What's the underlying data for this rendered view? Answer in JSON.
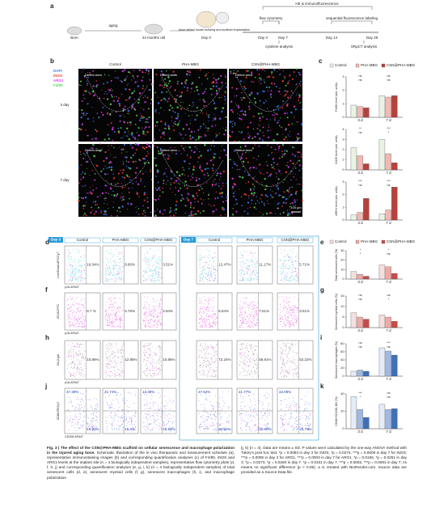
{
  "panel_a": {
    "letter": "a",
    "aging": "aging",
    "born": "Born",
    "age": "24 months old",
    "model": "bone defect model building and scaffold implantation",
    "he": "HE & immunofluorescence",
    "flow": "flow cytometry",
    "seq": "sequential fluorescence labeling",
    "cyto": "cytokine analysis",
    "ct": "SRµCT analysis",
    "days": [
      "Day 0",
      "Day 3",
      "Day 7",
      "Day 14",
      "Day 28"
    ]
  },
  "panel_b": {
    "letter": "b",
    "columns": [
      "Control",
      "PHA-MBG",
      "CSN@PHA-MBG"
    ],
    "rows": [
      "3 day",
      "7 day"
    ],
    "channels": [
      "DAPI",
      "iNOS",
      "ARG1",
      "F4/80"
    ],
    "area": "Defect area",
    "scale": "100 µm"
  },
  "panel_c": {
    "letter": "c",
    "groups": [
      {
        "name": "Control",
        "color": "#e9f3e4"
      },
      {
        "name": "PHA-MBG",
        "color": "#f3b8b4"
      },
      {
        "name": "CSN@PHA-MBG",
        "color": "#b5423b"
      }
    ],
    "charts": [
      {
        "ylabel": "F4/80 level (arb. units)",
        "categories": [
          "3 d",
          "7 d"
        ],
        "ylim": [
          0,
          3
        ],
        "yticks": [
          0,
          1,
          2,
          3
        ],
        "values": [
          [
            0.9,
            0.8,
            0.7
          ],
          [
            1.6,
            1.5,
            1.6
          ]
        ],
        "sig": [
          [
            "ns",
            "ns"
          ],
          [
            "ns",
            "ns"
          ]
        ]
      },
      {
        "ylabel": "iNOS level (arb. units)",
        "categories": [
          "3 d",
          "7 d"
        ],
        "ylim": [
          0,
          4
        ],
        "yticks": [
          0,
          1,
          2,
          3,
          4
        ],
        "values": [
          [
            2.2,
            1.4,
            0.6
          ],
          [
            3.0,
            1.6,
            0.7
          ]
        ],
        "sig": [
          [
            "**",
            "ns"
          ],
          [
            "***",
            "*"
          ]
        ]
      },
      {
        "ylabel": "ARG1 level (arb. units)",
        "categories": [
          "3 d",
          "7 d"
        ],
        "ylim": [
          0,
          3
        ],
        "yticks": [
          0,
          1,
          2,
          3
        ],
        "values": [
          [
            0.4,
            0.6,
            1.7
          ],
          [
            0.5,
            0.8,
            2.6
          ]
        ],
        "sig": [
          [
            "***",
            "ns"
          ],
          [
            "***",
            "ns"
          ]
        ]
      }
    ]
  },
  "flow_header": {
    "day3": "Day 3",
    "day7": "Day 7",
    "groups": [
      "Control",
      "PHA-MBG",
      "CSN@PHA-MBG"
    ]
  },
  "panel_d": {
    "letter": "d",
    "y_label": "Live/Dead-APC/Cy7",
    "x_label": "p16-AF647",
    "day3": [
      "16.04%",
      "8.80%",
      "3.51%"
    ],
    "day7": [
      "12.47%",
      "11.17%",
      "5.71%"
    ]
  },
  "panel_f": {
    "letter": "f",
    "y_label": "CD45-FITC",
    "x_label": "p16-AF647",
    "day3": [
      "8.7 %",
      "5.76%",
      "3.94%"
    ],
    "day7": [
      "6.84%",
      "7.61%",
      "3.51%"
    ]
  },
  "panel_h": {
    "letter": "h",
    "y_label": "SA-β-gal",
    "x_label": "p16-AF647",
    "day3": [
      "10.86%",
      "12.98%",
      "10.86%"
    ],
    "day7": [
      "72.24%",
      "58.91%",
      "52.22%"
    ]
  },
  "panel_j": {
    "letter": "j",
    "y_label": "CD86-PE/Cy7",
    "x_label": "CD206-AF647",
    "day3": [
      [
        "37.39%",
        "16.92%"
      ],
      [
        "21.74%",
        "16.4%"
      ],
      [
        "13.38%",
        "18.94%"
      ]
    ],
    "day7": [
      [
        "27.52%",
        "24.92%"
      ],
      [
        "21.77%",
        "32.60%"
      ],
      [
        "23.09%",
        "40.79%"
      ]
    ]
  },
  "panel_e": {
    "letter": "e",
    "groups": [
      {
        "name": "Control",
        "color": "#f4dede"
      },
      {
        "name": "PHA-MBG",
        "color": "#f0a9a6"
      },
      {
        "name": "CSN@PHA-MBG",
        "color": "#c44d4a"
      }
    ],
    "charts": [
      {
        "ylabel": "Total senescent cells (%)",
        "categories": [
          "3 d",
          "7 d"
        ],
        "ylim": [
          0,
          30
        ],
        "yticks": [
          0,
          10,
          20,
          30
        ],
        "values": [
          [
            8,
            5,
            3
          ],
          [
            15,
            13,
            6
          ]
        ],
        "sig": [
          [
            "*",
            "*"
          ],
          [
            "*",
            "ns"
          ]
        ]
      }
    ]
  },
  "panel_g": {
    "letter": "g",
    "groups": [
      {
        "name": "Control",
        "color": "#f4dede"
      },
      {
        "name": "PHA-MBG",
        "color": "#f0a9a6"
      },
      {
        "name": "CSN@PHA-MBG",
        "color": "#c44d4a"
      }
    ],
    "charts": [
      {
        "ylabel": "Senescent myeloid cells (%)",
        "categories": [
          "3 d",
          "7 d"
        ],
        "ylim": [
          0,
          15
        ],
        "yticks": [
          0,
          5,
          10,
          15
        ],
        "values": [
          [
            7,
            5,
            4
          ],
          [
            6,
            5,
            3
          ]
        ],
        "sig": [
          [
            "ns",
            "ns"
          ],
          [
            "ns",
            "*"
          ]
        ]
      }
    ]
  },
  "panel_i": {
    "letter": "i",
    "groups": [
      {
        "name": "Control",
        "color": "#e4ecf8"
      },
      {
        "name": "PHA-MBG",
        "color": "#9fb9e3"
      },
      {
        "name": "CSN@PHA-MBG",
        "color": "#3f6fb8"
      }
    ],
    "charts": [
      {
        "ylabel": "Senescent macrophages (%)",
        "categories": [
          "3 d",
          "7 d"
        ],
        "ylim": [
          0,
          80
        ],
        "yticks": [
          0,
          20,
          40,
          60,
          80
        ],
        "values": [
          [
            12,
            15,
            12
          ],
          [
            70,
            62,
            52
          ]
        ],
        "sig": [
          [
            "ns",
            "ns"
          ],
          [
            "***",
            "ns"
          ]
        ]
      }
    ]
  },
  "panel_k": {
    "letter": "k",
    "groups": [
      {
        "name": "Control",
        "color": "#e4ecf8"
      },
      {
        "name": "PHA-MBG",
        "color": "#9fb9e3"
      },
      {
        "name": "CSN@PHA-MBG",
        "color": "#3f6fb8"
      }
    ],
    "charts": [
      {
        "ylabel": "CD86+CD206- M1 (%)",
        "categories": [
          "3 d",
          "7 d"
        ],
        "ylim": [
          0,
          40
        ],
        "yticks": [
          0,
          20,
          40
        ],
        "values": [
          [
            37,
            22,
            13
          ],
          [
            28,
            22,
            23
          ]
        ],
        "sig": [
          [
            "***",
            "*"
          ],
          [
            "ns",
            "ns"
          ]
        ]
      }
    ]
  },
  "caption": {
    "title": "Fig. 3 | The effect of the CSN@PHA-MBG scaffold on cellular senescence and macrophage polarization in the injured aging bone.",
    "left": "Schematic illustration of the in vivo therapeutic and measurement schedule (a), representative immunostaining images (b) and corresponding quantification analyses (c) of F4/80, iNOS and ARG1 levels at the implant site (n = 4 biologically independent samples), representative flow cytometry plots (d, f, h, j) and corresponding quantification analyses (e, g, i, k) (n = 4 biologically independent samples) of total senescent cells (d, e), senescent myeloid cells (f, g), senescent macrophages (h, i), and macrophage polarization",
    "right": "(j, k) (n = 4). Data are means ± SD. P values were calculated by the one-way ANOVA method with Tukey's post hoc test. *p = 0.0063 in day 3 for iNOS, *p = 0.0274, ***p = 0.0009 in day 7 for iNOS; ***p = 0.0009 in day 3 for ARG1, ***p = 0.0003 in day 7 for ARG1. *p = 0.0156, *p = 0.0251 in day 3; *p = 0.0273, *p = 0.0260 in day 7. *p = 0.0341 in day 7. ***p = 0.0002, ***p = 0.0081 in day 7; ns means no significant difference (p > 0.05). a is created with BioRender.com. Source data are provided as a Source Data file."
  }
}
